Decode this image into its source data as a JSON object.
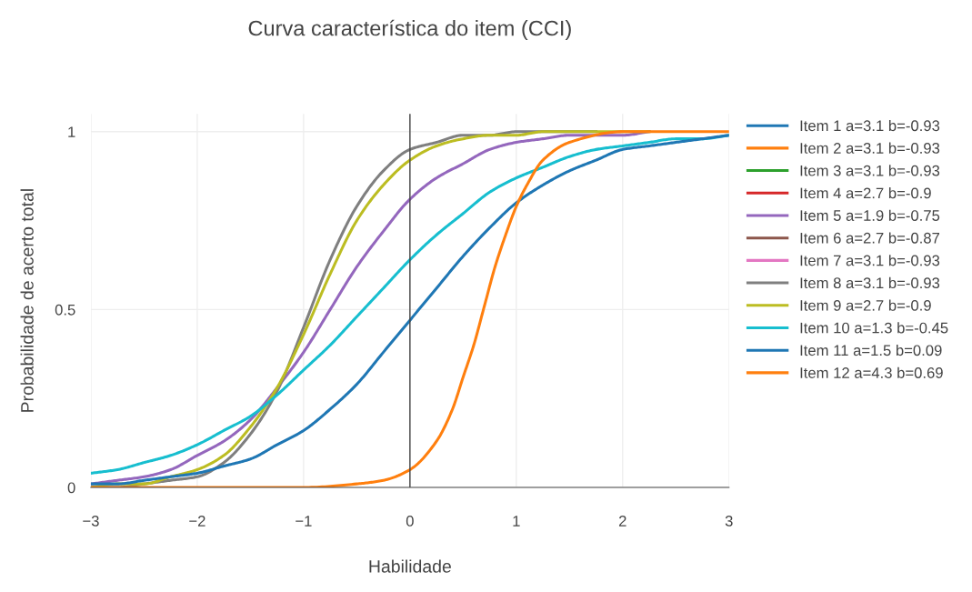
{
  "chart_data": {
    "type": "line",
    "title": "Curva característica do item (CCI)",
    "xlabel": "Habilidade",
    "ylabel": "Probabilidade de acerto total",
    "x": [
      -3,
      -2.75,
      -2.5,
      -2.25,
      -2,
      -1.75,
      -1.5,
      -1.25,
      -1,
      -0.75,
      -0.5,
      -0.25,
      0,
      0.25,
      0.5,
      0.75,
      1,
      1.25,
      1.5,
      1.75,
      2,
      2.25,
      2.5,
      2.75,
      3
    ],
    "xlim": [
      -3,
      3
    ],
    "ylim": [
      0,
      1.05
    ],
    "xticks": [
      {
        "value": -3,
        "label": "−3"
      },
      {
        "value": -2,
        "label": "−2"
      },
      {
        "value": -1,
        "label": "−1"
      },
      0,
      1,
      2,
      3
    ],
    "yticks": [
      0,
      0.5,
      1
    ],
    "grid": true,
    "legend": "right",
    "marker": "none",
    "line_style": "solid",
    "ref_lines": [
      {
        "axis": "x",
        "value": 0,
        "label": null,
        "color": "#444444"
      }
    ],
    "series": [
      {
        "name": "Item 1 a=3.1 b=-0.93",
        "color": "#1f77b4",
        "values": [
          null,
          null,
          null,
          null,
          null,
          null,
          null,
          null,
          null,
          null,
          null,
          null,
          null,
          null,
          null,
          null,
          null,
          null,
          null,
          null,
          null,
          null,
          null,
          null,
          null
        ]
      },
      {
        "name": "Item 2 a=3.1 b=-0.93",
        "color": "#ff7f0e",
        "values": [
          null,
          null,
          null,
          null,
          null,
          null,
          null,
          null,
          null,
          null,
          null,
          null,
          null,
          null,
          null,
          null,
          null,
          null,
          null,
          null,
          null,
          null,
          null,
          null,
          null
        ]
      },
      {
        "name": "Item 3 a=3.1 b=-0.93",
        "color": "#2ca02c",
        "values": [
          null,
          null,
          null,
          null,
          null,
          null,
          null,
          null,
          null,
          null,
          null,
          null,
          null,
          null,
          null,
          null,
          null,
          null,
          null,
          null,
          null,
          null,
          null,
          null,
          null
        ]
      },
      {
        "name": "Item 4 a=2.7 b=-0.9",
        "color": "#d62728",
        "values": [
          null,
          null,
          null,
          null,
          null,
          null,
          null,
          null,
          null,
          null,
          null,
          null,
          null,
          null,
          null,
          null,
          null,
          null,
          null,
          null,
          null,
          null,
          null,
          null,
          null
        ]
      },
      {
        "name": "Item 5 a=1.9 b=-0.75",
        "color": "#9467bd",
        "values": [
          0.01,
          0.02,
          0.03,
          0.05,
          0.09,
          0.13,
          0.19,
          0.28,
          0.38,
          0.5,
          0.62,
          0.72,
          0.81,
          0.87,
          0.91,
          0.95,
          0.97,
          0.98,
          0.99,
          0.99,
          0.99,
          1.0,
          null,
          null,
          null
        ]
      },
      {
        "name": "Item 6 a=2.7 b=-0.87",
        "color": "#8c564b",
        "values": [
          null,
          null,
          null,
          null,
          null,
          null,
          null,
          null,
          null,
          null,
          null,
          null,
          null,
          null,
          null,
          null,
          null,
          null,
          null,
          null,
          null,
          null,
          null,
          null,
          null
        ]
      },
      {
        "name": "Item 7 a=3.1 b=-0.93",
        "color": "#e377c2",
        "values": [
          null,
          null,
          null,
          null,
          null,
          null,
          null,
          null,
          null,
          null,
          null,
          null,
          null,
          null,
          null,
          null,
          null,
          null,
          null,
          null,
          null,
          null,
          null,
          null,
          null
        ]
      },
      {
        "name": "Item 8 a=3.1 b=-0.93",
        "color": "#7f7f7f",
        "values": [
          0.0,
          0.0,
          0.01,
          0.02,
          0.03,
          0.07,
          0.15,
          0.27,
          0.45,
          0.64,
          0.79,
          0.89,
          0.95,
          0.97,
          0.99,
          0.99,
          1.0,
          1.0,
          1.0,
          1.0,
          null,
          null,
          null,
          null,
          null
        ]
      },
      {
        "name": "Item 9 a=2.7 b=-0.9",
        "color": "#bcbd22",
        "values": [
          0.0,
          0.01,
          0.01,
          0.03,
          0.05,
          0.09,
          0.17,
          0.28,
          0.43,
          0.6,
          0.75,
          0.85,
          0.92,
          0.96,
          0.98,
          0.99,
          0.99,
          1.0,
          1.0,
          1.0,
          1.0,
          1.0,
          null,
          null,
          null
        ]
      },
      {
        "name": "Item 10 a=1.3 b=-0.45",
        "color": "#17becf",
        "values": [
          0.04,
          0.05,
          0.07,
          0.09,
          0.12,
          0.16,
          0.2,
          0.26,
          0.33,
          0.4,
          0.48,
          0.56,
          0.64,
          0.71,
          0.77,
          0.83,
          0.87,
          0.9,
          0.93,
          0.95,
          0.96,
          0.97,
          0.98,
          0.98,
          0.99
        ]
      },
      {
        "name": "Item 11 a=1.5 b=0.09",
        "color": "#1f77b4",
        "values": [
          0.01,
          0.01,
          0.02,
          0.03,
          0.04,
          0.06,
          0.08,
          0.12,
          0.16,
          0.22,
          0.29,
          0.38,
          0.47,
          0.56,
          0.65,
          0.73,
          0.8,
          0.85,
          0.89,
          0.92,
          0.95,
          0.96,
          0.97,
          0.98,
          0.99
        ]
      },
      {
        "name": "Item 12 a=4.3 b=0.69",
        "color": "#ff7f0e",
        "x": [
          -3,
          -2,
          -1,
          -0.5,
          -0.25,
          0,
          0.25,
          0.4,
          0.5,
          0.6,
          0.7,
          0.8,
          0.9,
          1.0,
          1.1,
          1.25,
          1.5,
          2,
          2.5,
          3
        ],
        "values": [
          0.0,
          0.0,
          0.0,
          0.01,
          0.02,
          0.05,
          0.13,
          0.22,
          0.31,
          0.4,
          0.51,
          0.62,
          0.71,
          0.79,
          0.85,
          0.92,
          0.97,
          1.0,
          1.0,
          1.0
        ]
      }
    ]
  }
}
